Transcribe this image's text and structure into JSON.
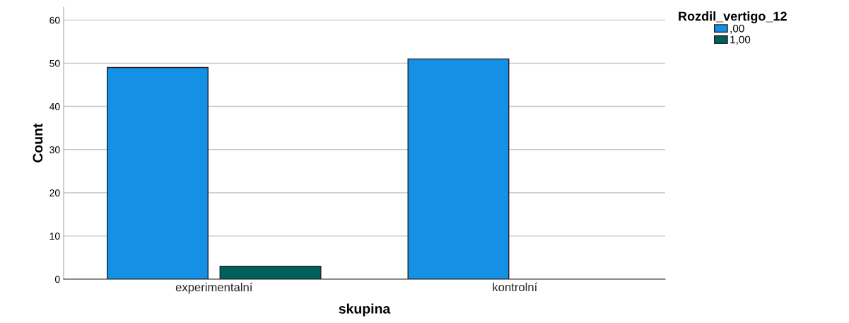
{
  "chart_data": {
    "type": "bar",
    "xlabel": "skupina",
    "ylabel": "Count",
    "legend_title": "Rozdil_vertigo_12",
    "categories": [
      "experimentalní",
      "kontrolní"
    ],
    "series": [
      {
        "name": ",00",
        "color": "#1490e5",
        "values": [
          49,
          51
        ]
      },
      {
        "name": "1,00",
        "color": "#00605c",
        "values": [
          3,
          null
        ]
      }
    ],
    "ylim": [
      0,
      63
    ],
    "yticks": [
      0,
      10,
      20,
      30,
      40,
      50,
      60
    ],
    "grid": "y",
    "legend": "top right"
  }
}
